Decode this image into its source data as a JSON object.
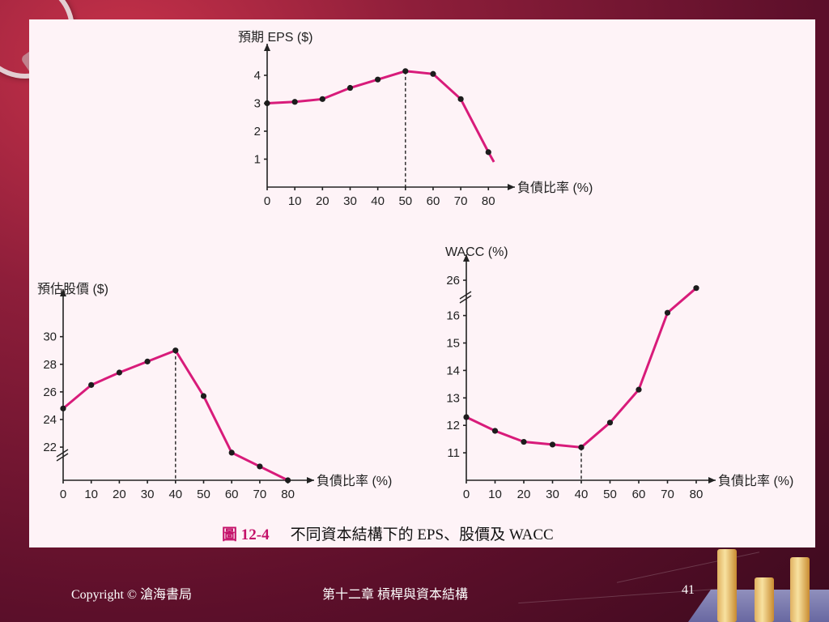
{
  "colors": {
    "line": "#d81b7a",
    "point": "#1c1c1c",
    "caption_accent": "#c4126a"
  },
  "caption": {
    "number": "圖 12-4",
    "text": "不同資本結構下的 EPS、股價及 WACC"
  },
  "footer": {
    "copyright": "Copyright © 滄海書局",
    "chapter": "第十二章 槓桿與資本結構",
    "page": "41"
  },
  "chart_data": [
    {
      "type": "line",
      "ylabel": "預期 EPS ($)",
      "xlabel": "負債比率 (%)",
      "x": [
        0,
        10,
        20,
        30,
        40,
        50,
        60,
        70,
        80
      ],
      "y": [
        3.0,
        3.05,
        3.15,
        3.55,
        3.85,
        4.15,
        4.05,
        3.15,
        1.25
      ],
      "line_end": [
        82,
        0.9
      ],
      "xlim": [
        0,
        85
      ],
      "ylim": [
        0,
        4.7
      ],
      "xticks": [
        "0",
        "10",
        "20",
        "30",
        "40",
        "50",
        "60",
        "70",
        "80"
      ],
      "yticks": [
        "1",
        "2",
        "3",
        "4"
      ],
      "marker_x": 50
    },
    {
      "type": "line",
      "ylabel": "預估股價 ($)",
      "xlabel": "負債比率 (%)",
      "x": [
        0,
        10,
        20,
        30,
        40,
        50,
        60,
        70,
        80
      ],
      "y": [
        24.8,
        26.5,
        27.4,
        28.2,
        29.0,
        25.7,
        21.6,
        20.6,
        19.6
      ],
      "xlim": [
        0,
        85
      ],
      "ylim": [
        19.6,
        31.4
      ],
      "xticks": [
        "0",
        "10",
        "20",
        "30",
        "40",
        "50",
        "60",
        "70",
        "80"
      ],
      "yticks": [
        "22",
        "24",
        "26",
        "28",
        "30"
      ],
      "axis_break": true,
      "marker_x": 40
    },
    {
      "type": "line",
      "ylabel": "WACC (%)",
      "xlabel": "負債比率 (%)",
      "x": [
        0,
        10,
        20,
        30,
        40,
        50,
        60,
        70,
        80
      ],
      "y": [
        12.3,
        11.8,
        11.4,
        11.3,
        11.2,
        12.1,
        13.3,
        16.1,
        17.0
      ],
      "xlim": [
        0,
        85
      ],
      "ylim": [
        10.0,
        17.85
      ],
      "xticks": [
        "0",
        "10",
        "20",
        "30",
        "40",
        "50",
        "60",
        "70",
        "80"
      ],
      "yticks": [
        "11",
        "12",
        "13",
        "14",
        "15",
        "16"
      ],
      "ybreak_tick": "26",
      "axis_break": true,
      "marker_x": 40
    }
  ]
}
